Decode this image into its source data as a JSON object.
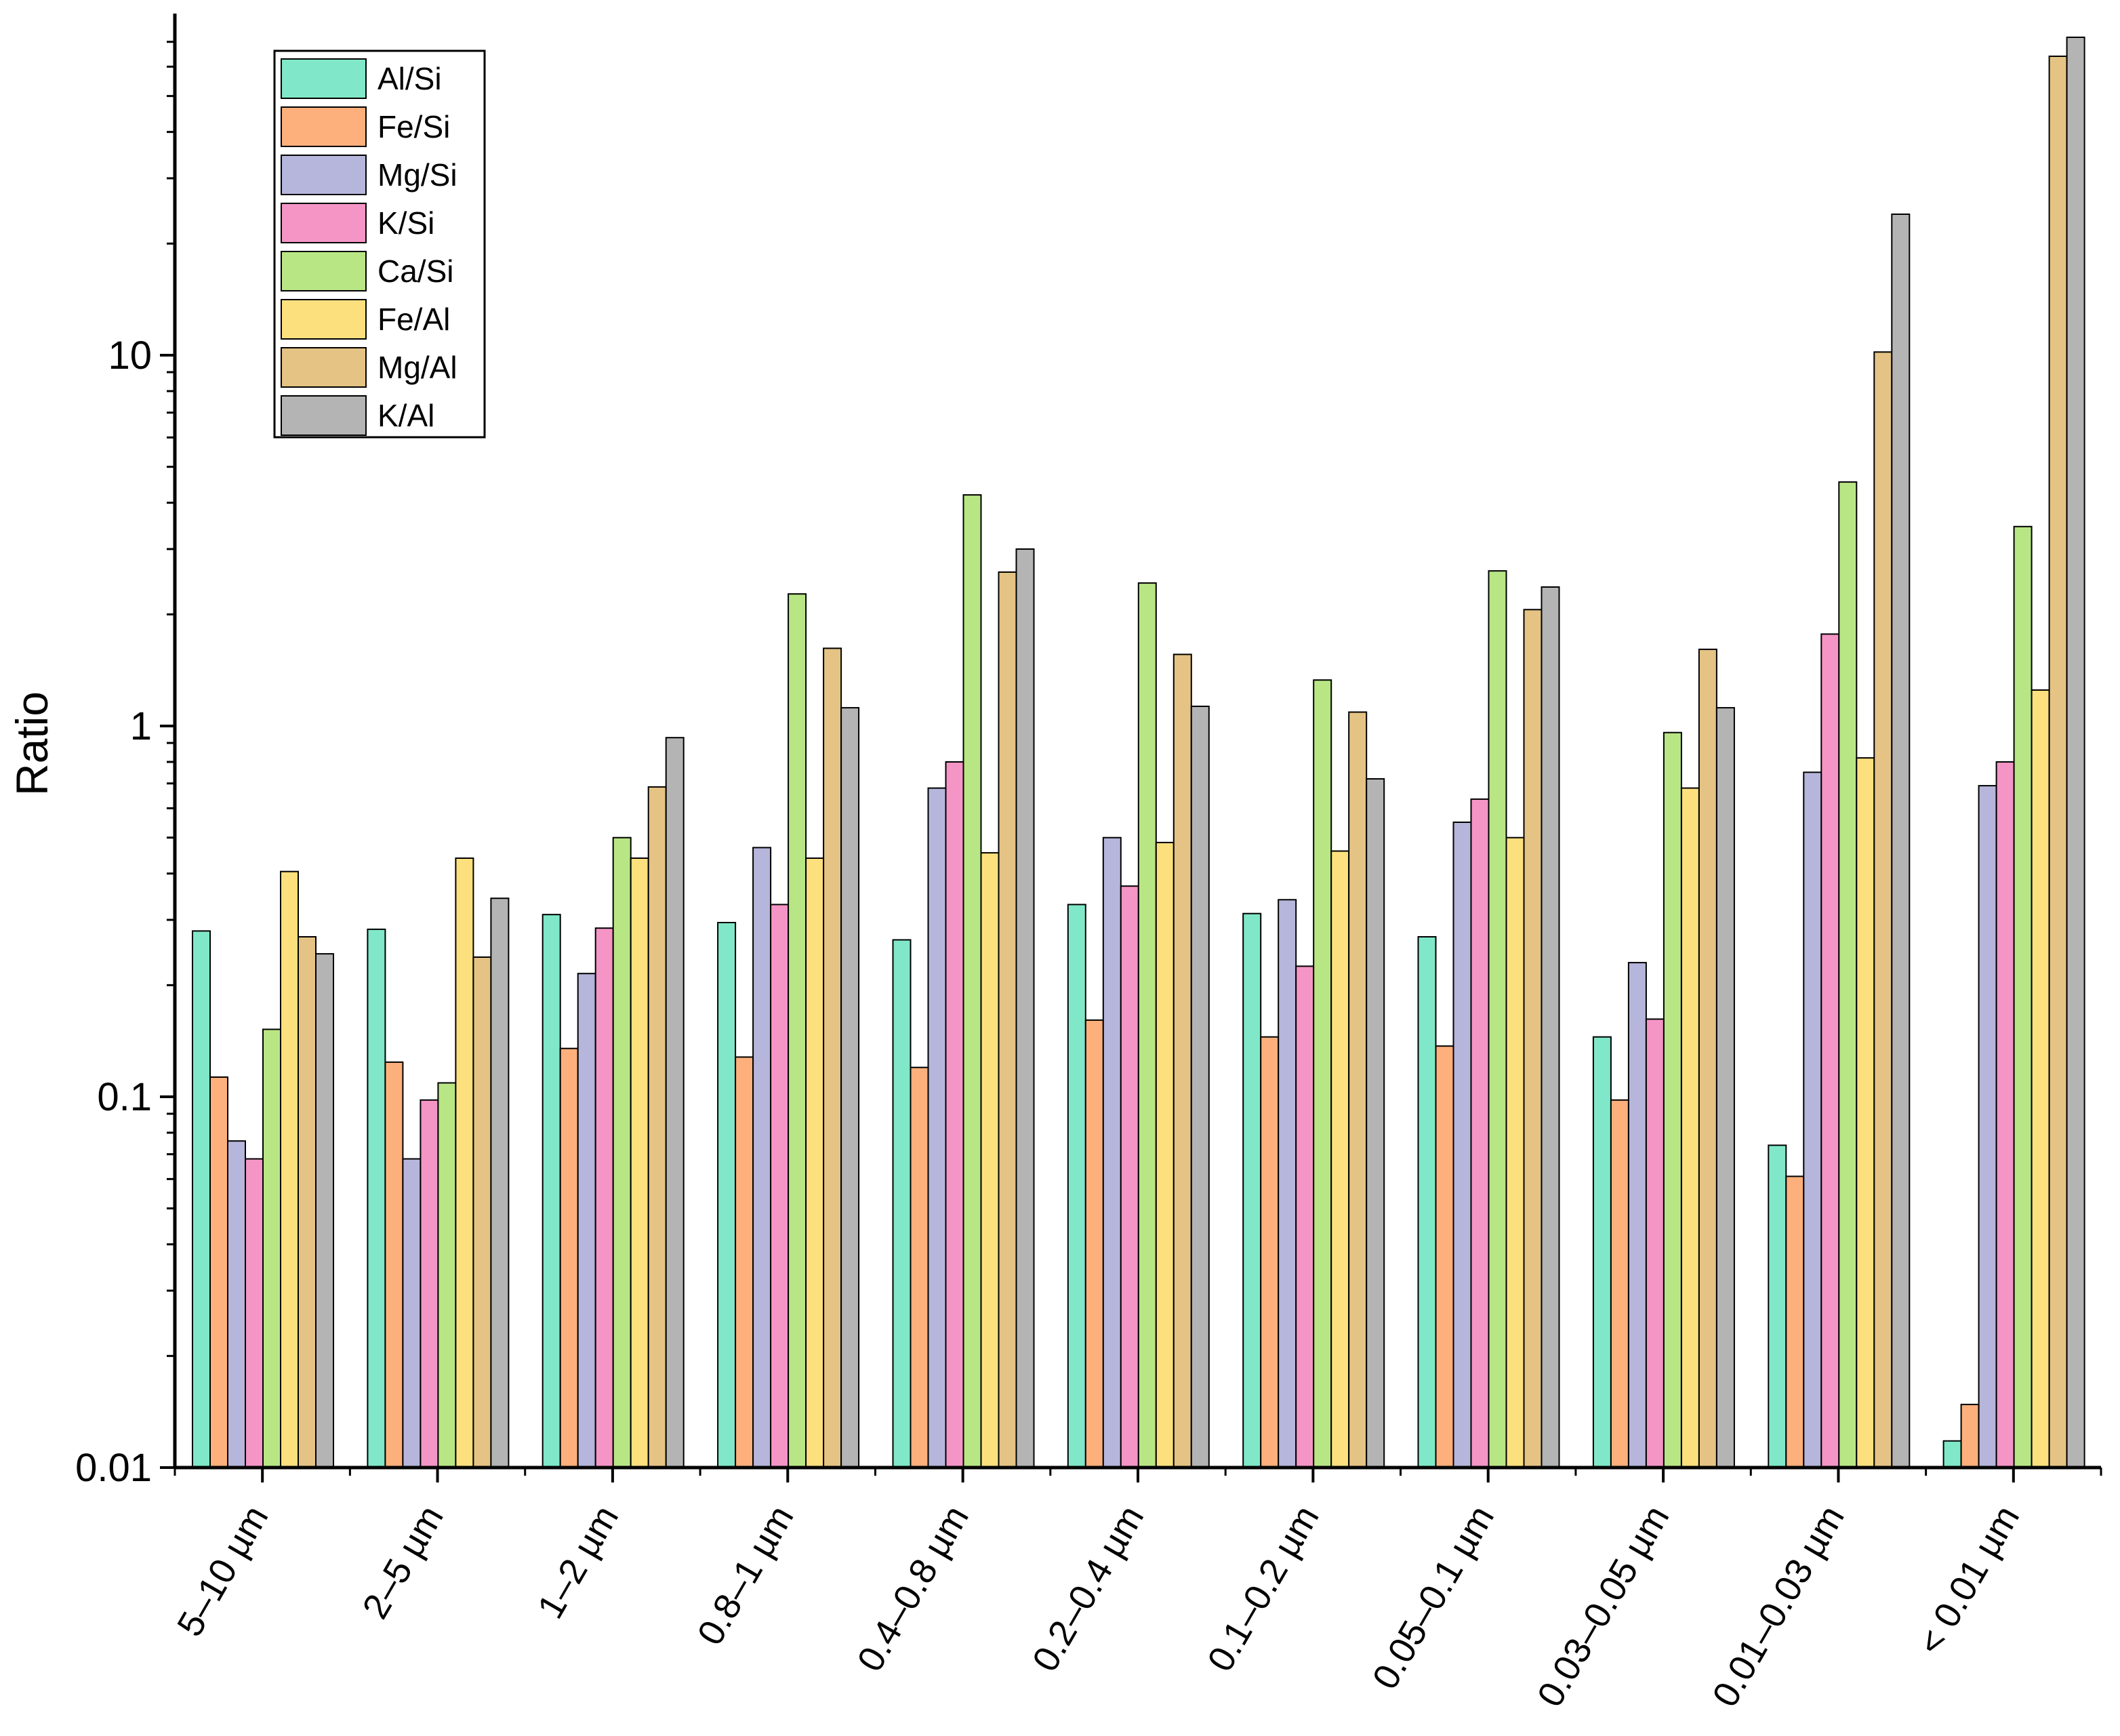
{
  "chart_data": {
    "type": "bar",
    "title": "",
    "xlabel": "",
    "ylabel": "Ratio",
    "yscale": "log",
    "ylim": [
      0.01,
      80
    ],
    "yticks": [
      {
        "value": 0.01,
        "label": "0.01"
      },
      {
        "value": 0.1,
        "label": "0.1"
      },
      {
        "value": 1,
        "label": "1"
      },
      {
        "value": 10,
        "label": "10"
      }
    ],
    "legend_position": "top-left",
    "categories": [
      "5–10 µm",
      "2–5 µm",
      "1–2 µm",
      "0.8–1 µm",
      "0.4–0.8 µm",
      "0.2–0.4 µm",
      "0.1–0.2 µm",
      "0.05–0.1 µm",
      "0.03–0.05 µm",
      "0.01–0.03 µm",
      "< 0.01 µm"
    ],
    "series": [
      {
        "name": "Al/Si",
        "color": "#80e8c8",
        "values": [
          0.28,
          0.283,
          0.31,
          0.295,
          0.265,
          0.33,
          0.312,
          0.27,
          0.145,
          0.074,
          0.0118
        ]
      },
      {
        "name": "Fe/Si",
        "color": "#fdb07c",
        "values": [
          0.113,
          0.124,
          0.135,
          0.128,
          0.12,
          0.161,
          0.145,
          0.137,
          0.098,
          0.061,
          0.0148
        ]
      },
      {
        "name": "Mg/Si",
        "color": "#b6b6dc",
        "values": [
          0.076,
          0.068,
          0.215,
          0.47,
          0.68,
          0.5,
          0.34,
          0.55,
          0.23,
          0.75,
          0.69
        ]
      },
      {
        "name": "K/Si",
        "color": "#f495c6",
        "values": [
          0.068,
          0.098,
          0.285,
          0.33,
          0.8,
          0.37,
          0.225,
          0.635,
          0.162,
          1.77,
          0.8
        ]
      },
      {
        "name": "Ca/Si",
        "color": "#b9e685",
        "values": [
          0.152,
          0.109,
          0.5,
          2.27,
          4.2,
          2.43,
          1.33,
          2.62,
          0.96,
          4.55,
          3.45
        ]
      },
      {
        "name": "Fe/Al",
        "color": "#fde07e",
        "values": [
          0.405,
          0.44,
          0.44,
          0.44,
          0.455,
          0.485,
          0.46,
          0.5,
          0.68,
          0.82,
          1.25
        ]
      },
      {
        "name": "Mg/Al",
        "color": "#e5c384",
        "values": [
          0.27,
          0.238,
          0.685,
          1.62,
          2.6,
          1.56,
          1.09,
          2.06,
          1.61,
          10.2,
          64.0
        ]
      },
      {
        "name": "K/Al",
        "color": "#b4b4b4",
        "values": [
          0.243,
          0.343,
          0.93,
          1.12,
          3.0,
          1.13,
          0.72,
          2.37,
          1.12,
          24.0,
          72.0
        ]
      }
    ]
  }
}
